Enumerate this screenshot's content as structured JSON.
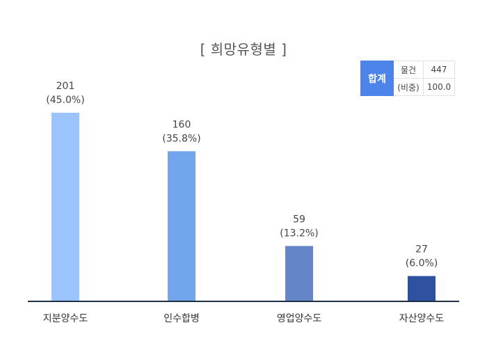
{
  "chart_data": {
    "type": "bar",
    "title": "[ 희망유형별 ]",
    "categories": [
      "지분양수도",
      "인수합병",
      "영업양수도",
      "자산양수도"
    ],
    "values": [
      201,
      160,
      59,
      27
    ],
    "percent_labels": [
      "(45.0%)",
      "(35.8%)",
      "(13.2%)",
      "(6.0%)"
    ],
    "colors": [
      "#9ac4fb",
      "#72a5ec",
      "#6685c8",
      "#2e529f"
    ],
    "ylim": [
      0,
      240
    ],
    "grid": false,
    "xlabel": "",
    "ylabel": ""
  },
  "summary": {
    "head": "합계",
    "rows": [
      {
        "label": "물건",
        "value": "447"
      },
      {
        "label": "(비중)",
        "value": "100.0"
      }
    ]
  }
}
